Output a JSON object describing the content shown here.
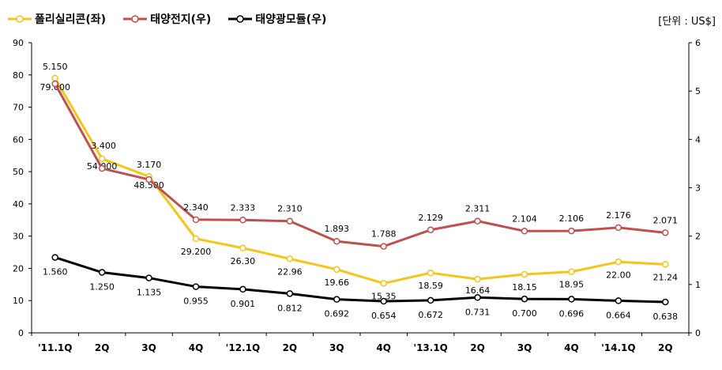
{
  "unit_label": "[단위 : US$]",
  "colors": {
    "polysilicon": "#F5C518",
    "cell": "#C0504D",
    "module": "#000000",
    "axis": "#000000"
  },
  "chart_data": {
    "type": "line",
    "categories": [
      "'11.1Q",
      "2Q",
      "3Q",
      "4Q",
      "'12.1Q",
      "2Q",
      "3Q",
      "4Q",
      "'13.1Q",
      "2Q",
      "3Q",
      "4Q",
      "'14.1Q",
      "2Q"
    ],
    "left_axis": {
      "min": 0,
      "max": 90,
      "ticks": [
        "0",
        "10",
        "20",
        "30",
        "40",
        "50",
        "60",
        "70",
        "80",
        "90"
      ]
    },
    "right_axis": {
      "min": 0,
      "max": 6,
      "ticks": [
        "0",
        "1",
        "2",
        "3",
        "4",
        "5",
        "6"
      ]
    },
    "grid": false,
    "legend_position": "top-left",
    "series": [
      {
        "key": "polysilicon",
        "name": "폴리실리콘(좌)",
        "axis": "left",
        "values": [
          79.0,
          54.0,
          48.5,
          29.2,
          26.3,
          22.96,
          19.66,
          15.35,
          18.59,
          16.64,
          18.15,
          18.95,
          22.0,
          21.24
        ],
        "labels": [
          "79.000",
          "54.000",
          "48.500",
          "29.200",
          "26.30",
          "22.96",
          "19.66",
          "15.35",
          "18.59",
          "16.64",
          "18.15",
          "18.95",
          "22.00",
          "21.24"
        ]
      },
      {
        "key": "cell",
        "name": "태양전지(우)",
        "axis": "right",
        "values": [
          5.15,
          3.4,
          3.17,
          2.34,
          2.333,
          2.31,
          1.893,
          1.788,
          2.129,
          2.311,
          2.104,
          2.106,
          2.176,
          2.071
        ],
        "labels": [
          "5.150",
          "3.400",
          "3.170",
          "2.340",
          "2.333",
          "2.310",
          "1.893",
          "1.788",
          "2.129",
          "2.311",
          "2.104",
          "2.106",
          "2.176",
          "2.071"
        ]
      },
      {
        "key": "module",
        "name": "태양광모듈(우)",
        "axis": "right",
        "values": [
          1.56,
          1.25,
          1.135,
          0.955,
          0.901,
          0.812,
          0.692,
          0.654,
          0.672,
          0.731,
          0.7,
          0.696,
          0.664,
          0.638
        ],
        "labels": [
          "1.560",
          "1.250",
          "1.135",
          "0.955",
          "0.901",
          "0.812",
          "0.692",
          "0.654",
          "0.672",
          "0.731",
          "0.700",
          "0.696",
          "0.664",
          "0.638"
        ]
      }
    ]
  }
}
